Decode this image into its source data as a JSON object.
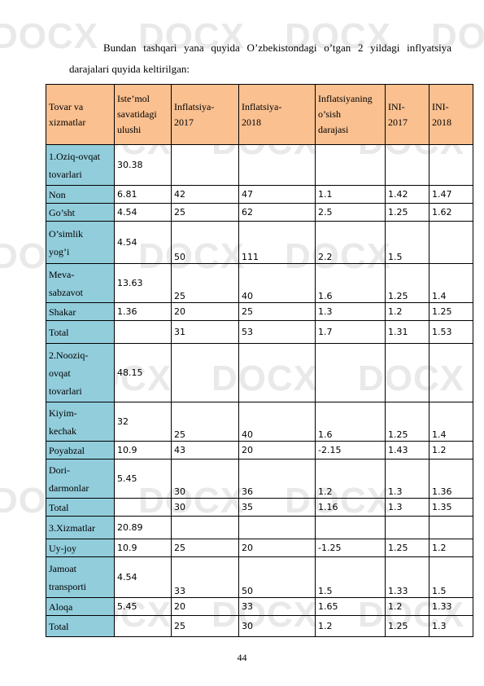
{
  "intro": {
    "line1": "Bundan tashqari yana quyida O’zbekistondagi o’tgan 2 yildagi inflyatsiya",
    "line2": "darajalari quyida keltirilgan:"
  },
  "table": {
    "headers": [
      [
        "Tovar va",
        "xizmatlar"
      ],
      [
        "Iste’mol",
        "savatidagi",
        "ulushi"
      ],
      [
        "Inflatsiya-",
        "2017"
      ],
      [
        "Inflatsiya-",
        "2018"
      ],
      [
        "Inflatsiyaning",
        "o’sish",
        "darajasi"
      ],
      [
        "INI-",
        "2017"
      ],
      [
        "INI-",
        "2018"
      ]
    ],
    "rows": [
      {
        "name": [
          "1.Oziq-ovqat",
          "tovarlari"
        ],
        "share": "30.38",
        "i2017": "",
        "i2018": "",
        "growth": "",
        "ini2017": "",
        "ini2018": "",
        "h": 50
      },
      {
        "name": [
          "Non"
        ],
        "share": "6.81",
        "i2017": "42",
        "i2018": "47",
        "growth": "1.1",
        "ini2017": "1.42",
        "ini2018": "1.47",
        "h": 22
      },
      {
        "name": [
          "Go’sht"
        ],
        "share": "4.54",
        "i2017": "25",
        "i2018": "62",
        "growth": "2.5",
        "ini2017": "1.25",
        "ini2018": "1.62",
        "h": 22
      },
      {
        "name": [
          "O’simlik",
          "yog’i"
        ],
        "share": "4.54",
        "i2017": "50",
        "i2018": "111",
        "growth": "2.2",
        "ini2017": "1.5",
        "ini2018": "",
        "h": 52
      },
      {
        "name": [
          "Meva-",
          "sabzavot"
        ],
        "share": "13.63",
        "i2017": "25",
        "i2018": "40",
        "growth": "1.6",
        "ini2017": "1.25",
        "ini2018": "1.4",
        "h": 48
      },
      {
        "name": [
          "Shakar"
        ],
        "share": "1.36",
        "i2017": "20",
        "i2018": "25",
        "growth": "1.3",
        "ini2017": "1.2",
        "ini2018": "1.25",
        "h": 22
      },
      {
        "name": [
          "Total"
        ],
        "share": "",
        "i2017": "31",
        "i2018": "53",
        "growth": "1.7",
        "ini2017": "1.31",
        "ini2018": "1.53",
        "h": 28
      },
      {
        "name": [
          "2.Nooziq-",
          "ovqat",
          "tovarlari"
        ],
        "share": "48.15",
        "i2017": "",
        "i2018": "",
        "growth": "",
        "ini2017": "",
        "ini2018": "",
        "h": 72
      },
      {
        "name": [
          "Kiyim-",
          "kechak"
        ],
        "share": "32",
        "i2017": "25",
        "i2018": "40",
        "growth": "1.6",
        "ini2017": "1.25",
        "ini2018": "1.4",
        "h": 48
      },
      {
        "name": [
          "Poyabzal"
        ],
        "share": "10.9",
        "i2017": "43",
        "i2018": "20",
        "growth": "-2.15",
        "ini2017": "1.43",
        "ini2018": "1.2",
        "h": 22
      },
      {
        "name": [
          "Dori-",
          "darmonlar"
        ],
        "share": "5.45",
        "i2017": "30",
        "i2018": "36",
        "growth": "1.2",
        "ini2017": "1.3",
        "ini2018": "1.36",
        "h": 48
      },
      {
        "name": [
          "Total"
        ],
        "share": "",
        "i2017": "30",
        "i2018": "35",
        "growth": "1.16",
        "ini2017": "1.3",
        "ini2018": "1.35",
        "h": 22
      },
      {
        "name": [
          "3.Xizmatlar"
        ],
        "share": "20.89",
        "i2017": "",
        "i2018": "",
        "growth": "",
        "ini2017": "",
        "ini2018": "",
        "h": 28
      },
      {
        "name": [
          "Uy-joy"
        ],
        "share": "10.9",
        "i2017": "25",
        "i2018": "20",
        "growth": "-1.25",
        "ini2017": "1.25",
        "ini2018": "1.2",
        "h": 22
      },
      {
        "name": [
          "Jamoat",
          "transporti"
        ],
        "share": "4.54",
        "i2017": "33",
        "i2018": "50",
        "growth": "1.5",
        "ini2017": "1.33",
        "ini2018": "1.5",
        "h": 50
      },
      {
        "name": [
          "Aloqa"
        ],
        "share": "5.45",
        "i2017": "20",
        "i2018": "33",
        "growth": "1.65",
        "ini2017": "1.2",
        "ini2018": "1.33",
        "h": 22
      },
      {
        "name": [
          "Total"
        ],
        "share": "",
        "i2017": "25",
        "i2018": "30",
        "growth": "1.2",
        "ini2017": "1.25",
        "ini2018": "1.3",
        "h": 26
      }
    ]
  },
  "page_number": "44",
  "watermark": "DOCX"
}
